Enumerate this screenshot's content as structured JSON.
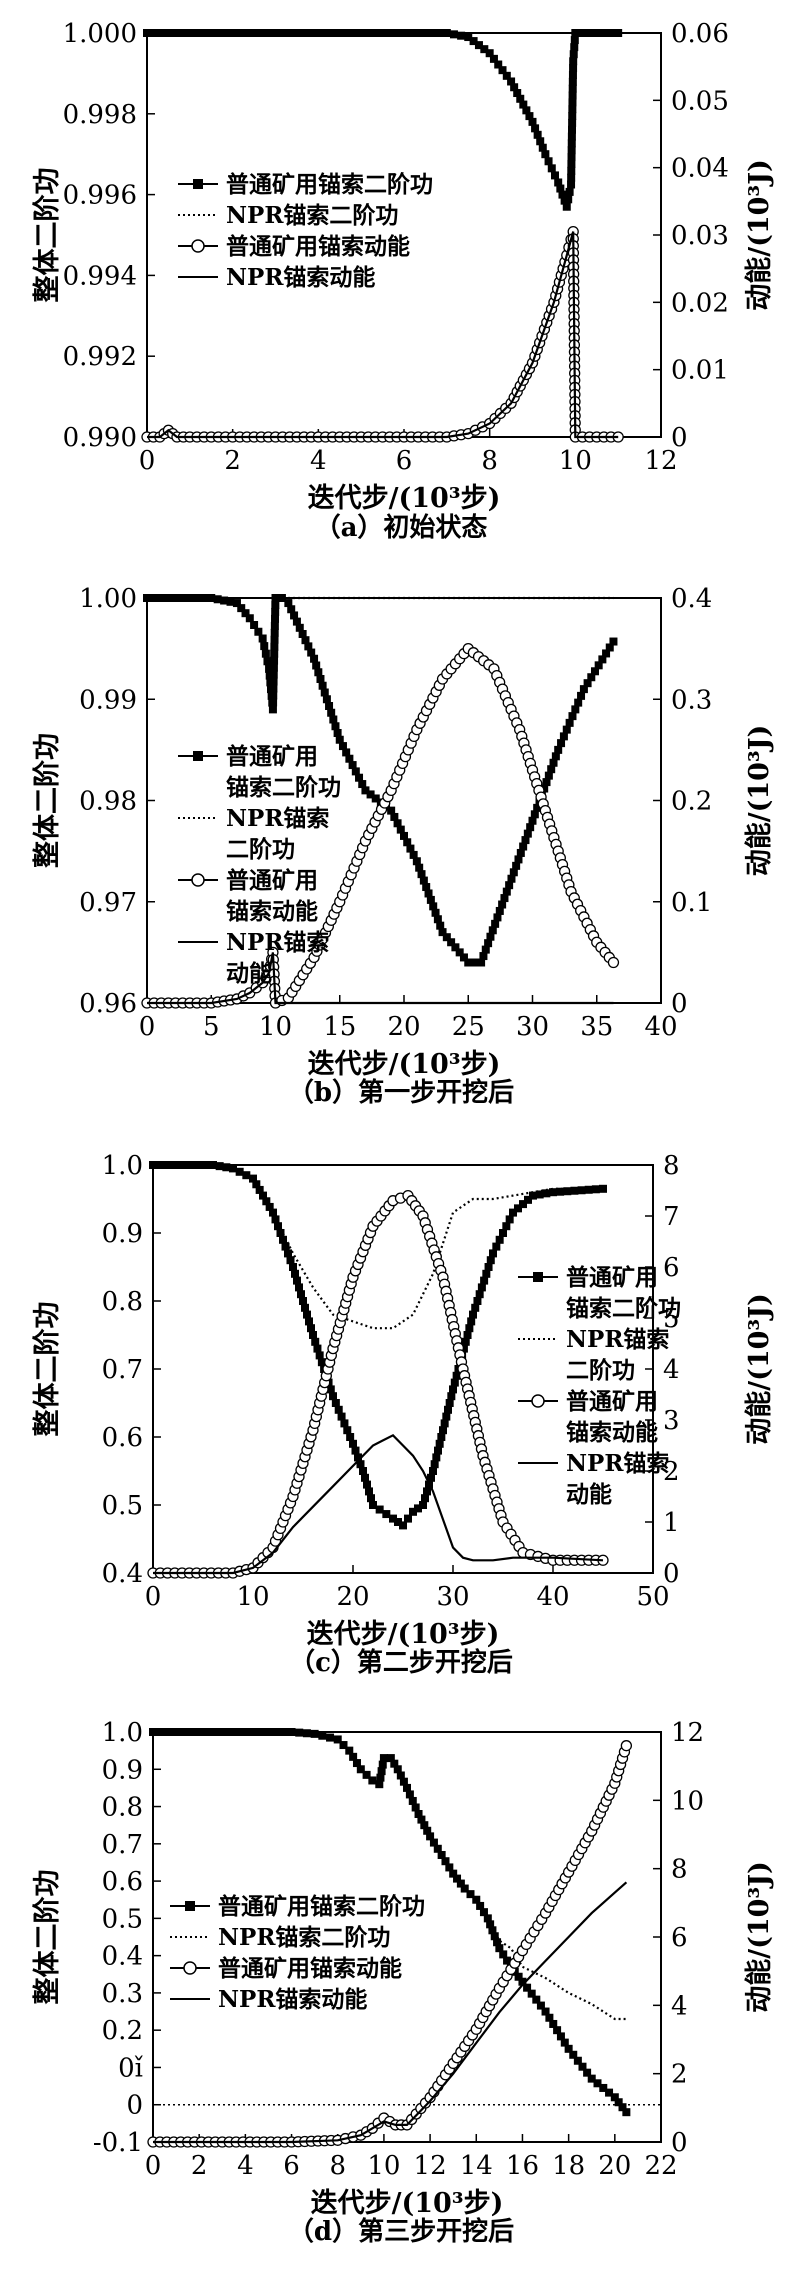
{
  "chart_data": [
    {
      "id": "a",
      "type": "line",
      "caption": "（a）初始状态",
      "xlabel": "迭代步/(10³步)",
      "ylabel_left": "整体二阶功",
      "ylabel_right": "动能/(10³J)",
      "xlim": [
        0,
        12
      ],
      "xticks": [
        "0",
        "2",
        "4",
        "6",
        "8",
        "10",
        "12"
      ],
      "ylim_left": [
        0.99,
        1.0
      ],
      "yticks_left": [
        "0.990",
        "0.992",
        "0.994",
        "0.996",
        "0.998",
        "1.000"
      ],
      "ylim_right": [
        0,
        0.06
      ],
      "yticks_right": [
        "0",
        "0.01",
        "0.02",
        "0.03",
        "0.04",
        "0.05",
        "0.06"
      ],
      "legend": [
        "普通矿用锚索二阶功",
        "NPR锚索二阶功",
        "普通矿用锚索动能",
        "NPR锚索动能"
      ],
      "legend_wrap": false,
      "series": [
        {
          "name": "普通矿用锚索二阶功",
          "axis": "left",
          "style": "square",
          "x": [
            0,
            2,
            4,
            6,
            7,
            7.5,
            8,
            8.5,
            9,
            9.3,
            9.6,
            9.8,
            9.9,
            9.95,
            10,
            11
          ],
          "y": [
            1,
            1,
            1,
            1,
            1,
            0.9999,
            0.9995,
            0.9988,
            0.9978,
            0.997,
            0.9963,
            0.9957,
            0.99625,
            0.9993,
            1,
            1
          ]
        },
        {
          "name": "NPR锚索二阶功",
          "axis": "left",
          "style": "dotted",
          "x": [
            0,
            2,
            4,
            6,
            7,
            7.5,
            8,
            8.5,
            9,
            9.3,
            9.6,
            9.8,
            9.9,
            9.95,
            10,
            11
          ],
          "y": [
            1,
            1,
            1,
            1,
            1,
            0.9999,
            0.9995,
            0.9988,
            0.9978,
            0.997,
            0.9963,
            0.9957,
            0.9962,
            0.9993,
            1,
            1
          ]
        },
        {
          "name": "普通矿用锚索动能",
          "axis": "right",
          "style": "circle",
          "x": [
            0,
            0.3,
            0.5,
            0.7,
            1,
            2,
            3,
            4,
            5,
            6,
            7,
            7.5,
            8,
            8.5,
            9,
            9.5,
            9.8,
            9.95,
            10,
            11
          ],
          "y": [
            0,
            0,
            0.001,
            0,
            0,
            0,
            0,
            0,
            0,
            0,
            0,
            0.0005,
            0.002,
            0.005,
            0.011,
            0.02,
            0.027,
            0.0305,
            0,
            0
          ]
        },
        {
          "name": "NPR锚索动能",
          "axis": "right",
          "style": "solid",
          "x": [
            0,
            0.3,
            0.5,
            0.7,
            1,
            2,
            3,
            4,
            5,
            6,
            7,
            7.5,
            8,
            8.5,
            9,
            9.5,
            9.8,
            9.95,
            10,
            11
          ],
          "y": [
            0,
            0,
            0.001,
            0,
            0,
            0,
            0,
            0,
            0,
            0,
            0,
            0.0005,
            0.002,
            0.005,
            0.011,
            0.02,
            0.027,
            0.0305,
            0,
            0
          ]
        }
      ]
    },
    {
      "id": "b",
      "type": "line",
      "caption": "（b）第一步开挖后",
      "xlabel": "迭代步/(10³步)",
      "ylabel_left": "整体二阶功",
      "ylabel_right": "动能/(10³J)",
      "xlim": [
        0,
        40
      ],
      "xticks": [
        "0",
        "5",
        "10",
        "15",
        "20",
        "25",
        "30",
        "35",
        "40"
      ],
      "ylim_left": [
        0.96,
        1.0
      ],
      "yticks_left": [
        "0.96",
        "0.97",
        "0.98",
        "0.99",
        "1.00"
      ],
      "ylim_right": [
        0,
        0.4
      ],
      "yticks_right": [
        "0",
        "0.1",
        "0.2",
        "0.3",
        "0.4"
      ],
      "legend": [
        "普通矿用锚索二阶功",
        "NPR锚索二阶功",
        "普通矿用锚索动能",
        "NPR锚索动能"
      ],
      "legend_wrap": true,
      "series": [
        {
          "name": "普通矿用锚索二阶功",
          "axis": "left",
          "style": "square",
          "x": [
            0,
            5,
            7,
            8,
            9,
            9.5,
            9.8,
            10,
            10.5,
            11,
            13,
            15,
            17,
            19,
            21,
            23,
            25,
            26,
            28,
            30,
            32,
            34,
            36.3
          ],
          "y": [
            1,
            1,
            0.9995,
            0.998,
            0.996,
            0.993,
            0.989,
            1.0,
            1.0,
            0.9995,
            0.994,
            0.986,
            0.981,
            0.979,
            0.974,
            0.967,
            0.964,
            0.964,
            0.971,
            0.978,
            0.985,
            0.991,
            0.9957
          ]
        },
        {
          "name": "NPR锚索二阶功",
          "axis": "left",
          "style": "dotted",
          "x": [
            0,
            5,
            7,
            8,
            9,
            9.5,
            9.8,
            10,
            11,
            15,
            20,
            25,
            30,
            35,
            36.3
          ],
          "y": [
            1,
            1,
            0.9995,
            0.998,
            0.996,
            0.993,
            0.989,
            1.0,
            1,
            1,
            1,
            1,
            1,
            1,
            1
          ]
        },
        {
          "name": "普通矿用锚索动能",
          "axis": "right",
          "style": "circle",
          "x": [
            0,
            5,
            7,
            8,
            9,
            9.5,
            9.8,
            10,
            11,
            13,
            15,
            17,
            19,
            21,
            23,
            25,
            27,
            29,
            31,
            33,
            35,
            36.3
          ],
          "y": [
            0,
            0,
            0.004,
            0.01,
            0.02,
            0.03,
            0.05,
            0,
            0.005,
            0.045,
            0.1,
            0.16,
            0.21,
            0.27,
            0.32,
            0.35,
            0.33,
            0.27,
            0.19,
            0.11,
            0.06,
            0.04
          ]
        },
        {
          "name": "NPR锚索动能",
          "axis": "right",
          "style": "solid",
          "x": [
            0,
            5,
            7,
            8,
            9,
            9.5,
            9.8,
            10,
            11,
            36.3
          ],
          "y": [
            0,
            0,
            0.004,
            0.01,
            0.02,
            0.03,
            0.05,
            0,
            0,
            0
          ]
        }
      ]
    },
    {
      "id": "c",
      "type": "line",
      "caption": "（c）第二步开挖后",
      "xlabel": "迭代步/(10³步)",
      "ylabel_left": "整体二阶功",
      "ylabel_right": "动能/(10³J)",
      "xlim": [
        0,
        50
      ],
      "xticks": [
        "0",
        "10",
        "20",
        "30",
        "40",
        "50"
      ],
      "ylim_left": [
        0.4,
        1.0
      ],
      "yticks_left": [
        "0.4",
        "0.5",
        "0.6",
        "0.7",
        "0.8",
        "0.9",
        "1.0"
      ],
      "ylim_right": [
        0,
        8
      ],
      "yticks_right": [
        "0",
        "1",
        "2",
        "3",
        "4",
        "5",
        "6",
        "7",
        "8"
      ],
      "legend": [
        "普通矿用锚索二阶功",
        "NPR锚索二阶功",
        "普通矿用锚索动能",
        "NPR锚索动能"
      ],
      "legend_wrap": true,
      "series": [
        {
          "name": "普通矿用锚索二阶功",
          "axis": "left",
          "style": "square",
          "x": [
            0,
            6,
            8,
            10,
            12,
            14,
            16,
            18,
            20,
            21,
            22,
            24,
            25,
            26,
            27,
            28,
            30,
            32,
            34,
            36,
            38,
            40,
            45
          ],
          "y": [
            1,
            1,
            0.995,
            0.98,
            0.93,
            0.85,
            0.75,
            0.66,
            0.59,
            0.55,
            0.5,
            0.48,
            0.47,
            0.49,
            0.5,
            0.55,
            0.67,
            0.78,
            0.87,
            0.93,
            0.955,
            0.96,
            0.965
          ]
        },
        {
          "name": "NPR锚索二阶功",
          "axis": "left",
          "style": "dotted",
          "x": [
            0,
            6,
            8,
            10,
            12,
            14,
            16,
            18,
            20,
            22,
            24,
            26,
            28,
            30,
            32,
            34,
            36,
            38,
            40,
            45
          ],
          "y": [
            1,
            1,
            0.995,
            0.98,
            0.93,
            0.87,
            0.82,
            0.78,
            0.77,
            0.76,
            0.76,
            0.78,
            0.84,
            0.93,
            0.95,
            0.95,
            0.955,
            0.96,
            0.965,
            0.965
          ]
        },
        {
          "name": "普通矿用锚索动能",
          "axis": "right",
          "style": "circle",
          "x": [
            0,
            8,
            10,
            12,
            14,
            16,
            18,
            20,
            22,
            24,
            25.5,
            27,
            29,
            31,
            33,
            35,
            37,
            40,
            45
          ],
          "y": [
            0,
            0,
            0.1,
            0.5,
            1.5,
            2.8,
            4.4,
            5.8,
            6.8,
            7.3,
            7.4,
            7.0,
            5.8,
            4.0,
            2.3,
            1.0,
            0.4,
            0.25,
            0.25
          ]
        },
        {
          "name": "NPR锚索动能",
          "axis": "right",
          "style": "solid",
          "x": [
            0,
            8,
            10,
            12,
            14,
            16,
            18,
            20,
            22,
            24,
            25,
            26,
            27,
            28,
            30,
            31,
            32,
            34,
            36,
            40,
            45
          ],
          "y": [
            0,
            0,
            0.1,
            0.4,
            0.9,
            1.3,
            1.7,
            2.1,
            2.5,
            2.7,
            2.5,
            2.3,
            2.0,
            1.6,
            0.5,
            0.3,
            0.25,
            0.25,
            0.3,
            0.3,
            0.25
          ]
        }
      ]
    },
    {
      "id": "d",
      "type": "line",
      "caption": "（d）第三步开挖后",
      "xlabel": "迭代步/(10³步)",
      "ylabel_left": "整体二阶功",
      "ylabel_right": "动能/(10³J)",
      "xlim": [
        0,
        22
      ],
      "xticks": [
        "0",
        "2",
        "4",
        "6",
        "8",
        "10",
        "12",
        "14",
        "16",
        "18",
        "20",
        "22"
      ],
      "ylim_left": [
        -0.1,
        1.0
      ],
      "yticks_left": [
        "-0.1",
        "0",
        "0ǐ",
        "0.2",
        "0.3",
        "0.4",
        "0.5",
        "0.6",
        "0.7",
        "0.8",
        "0.9",
        "1.0"
      ],
      "ylim_right": [
        0,
        12
      ],
      "yticks_right": [
        "0",
        "2",
        "4",
        "6",
        "8",
        "10",
        "12"
      ],
      "legend": [
        "普通矿用锚索二阶功",
        "NPR锚索二阶功",
        "普通矿用锚索动能",
        "NPR锚索动能"
      ],
      "legend_wrap": false,
      "series": [
        {
          "name": "普通矿用锚索二阶功",
          "axis": "left",
          "style": "square",
          "x": [
            0,
            6,
            7,
            8,
            8.5,
            9,
            9.5,
            9.8,
            10,
            10.3,
            10.6,
            11,
            11.5,
            12,
            12.5,
            13,
            13.5,
            14,
            14.5,
            15,
            15.5,
            16,
            17,
            18,
            19,
            20,
            20.5
          ],
          "y": [
            1,
            1,
            0.995,
            0.98,
            0.95,
            0.9,
            0.87,
            0.86,
            0.93,
            0.93,
            0.9,
            0.85,
            0.78,
            0.72,
            0.67,
            0.62,
            0.58,
            0.55,
            0.5,
            0.42,
            0.37,
            0.33,
            0.25,
            0.15,
            0.07,
            0.02,
            -0.02
          ]
        },
        {
          "name": "NPR锚索二阶功",
          "axis": "left",
          "style": "dotted",
          "x": [
            0,
            6,
            7,
            8,
            8.5,
            9,
            9.5,
            9.8,
            10,
            10.3,
            10.6,
            11,
            11.5,
            12,
            12.5,
            13,
            13.5,
            14,
            14.5,
            15,
            15.5,
            16,
            17,
            18,
            19,
            20,
            20.5
          ],
          "y": [
            1,
            1,
            0.995,
            0.98,
            0.95,
            0.9,
            0.87,
            0.86,
            0.93,
            0.93,
            0.9,
            0.85,
            0.78,
            0.72,
            0.67,
            0.62,
            0.58,
            0.55,
            0.5,
            0.44,
            0.42,
            0.37,
            0.34,
            0.3,
            0.27,
            0.23,
            0.23
          ]
        },
        {
          "name": "普通矿用锚索动能",
          "axis": "right",
          "style": "circle",
          "x": [
            0,
            6,
            8,
            9,
            9.5,
            10,
            10.5,
            11,
            12,
            13,
            14,
            15,
            16,
            17,
            18,
            19,
            20,
            20.5
          ],
          "y": [
            0,
            0,
            0.05,
            0.2,
            0.4,
            0.7,
            0.5,
            0.5,
            1.3,
            2.3,
            3.3,
            4.5,
            5.6,
            6.7,
            7.9,
            9.1,
            10.5,
            11.6
          ]
        },
        {
          "name": "NPR锚索动能",
          "axis": "right",
          "style": "solid",
          "x": [
            0,
            6,
            8,
            9,
            9.5,
            10,
            10.5,
            11,
            12,
            13,
            14,
            15,
            16,
            17,
            18,
            19,
            20,
            20.5
          ],
          "y": [
            0,
            0,
            0.05,
            0.2,
            0.4,
            0.6,
            0.5,
            0.5,
            1.2,
            2.0,
            2.9,
            3.8,
            4.6,
            5.3,
            6.0,
            6.7,
            7.3,
            7.6
          ]
        }
      ]
    }
  ]
}
